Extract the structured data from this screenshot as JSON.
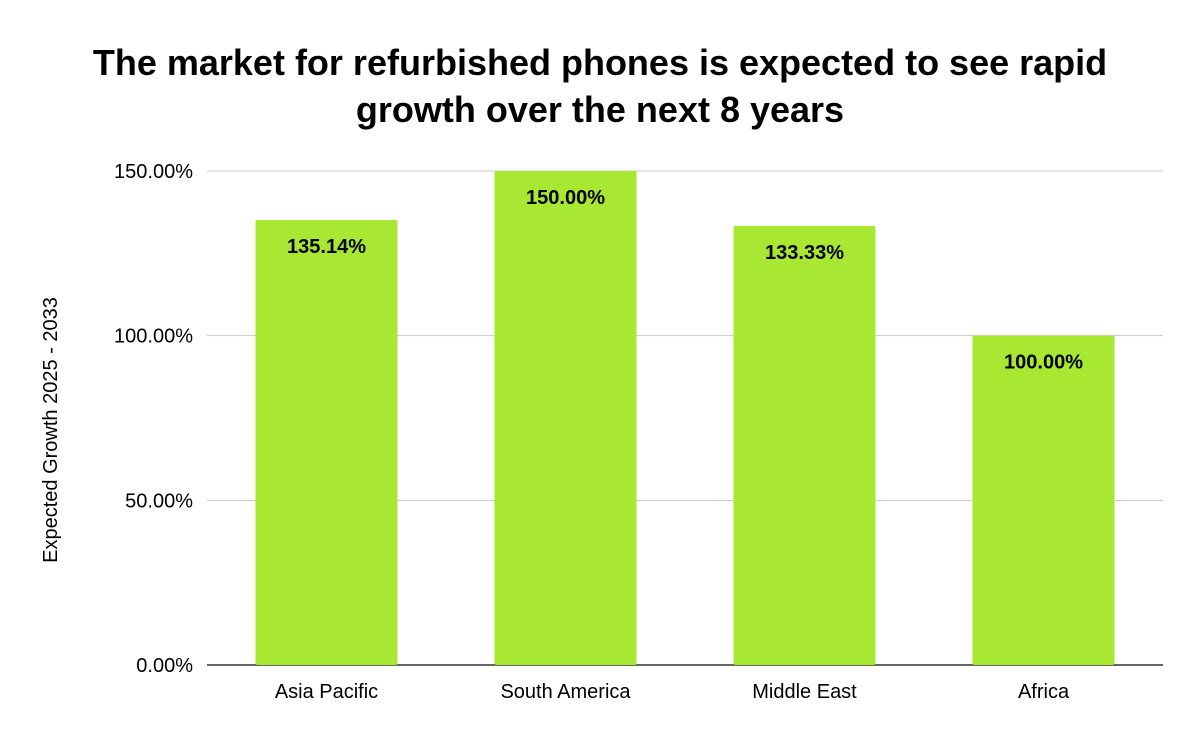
{
  "chart_data": {
    "type": "bar",
    "title": "The market for refurbished phones is expected to see rapid growth over the next 8 years",
    "title_lines": [
      "The market for refurbished phones is expected to see rapid",
      "growth over the next 8 years"
    ],
    "xlabel": "",
    "ylabel": "Expected Growth 2025 - 2033",
    "categories": [
      "Asia Pacific",
      "South America",
      "Middle East",
      "Africa"
    ],
    "values": [
      135.14,
      150.0,
      133.33,
      100.0
    ],
    "data_labels": [
      "135.14%",
      "150.00%",
      "133.33%",
      "100.00%"
    ],
    "ylim": [
      0,
      150
    ],
    "yticks": [
      0,
      50,
      100,
      150
    ],
    "ytick_labels": [
      "0.00%",
      "50.00%",
      "100.00%",
      "150.00%"
    ],
    "grid": true,
    "legend": "none",
    "bar_color": "#a8e832"
  }
}
